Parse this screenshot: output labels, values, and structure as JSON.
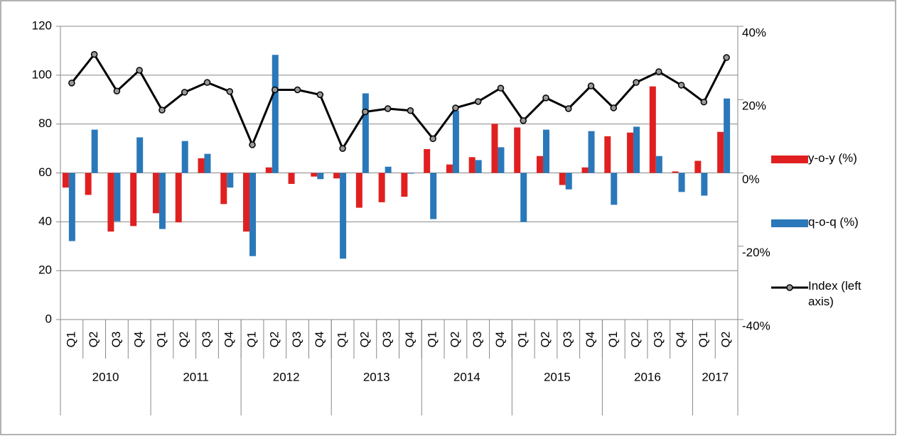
{
  "chart_data": {
    "type": "bar",
    "categories": [
      "Q1",
      "Q2",
      "Q3",
      "Q4",
      "Q1",
      "Q2",
      "Q3",
      "Q4",
      "Q1",
      "Q2",
      "Q3",
      "Q4",
      "Q1",
      "Q2",
      "Q3",
      "Q4",
      "Q1",
      "Q2",
      "Q3",
      "Q4",
      "Q1",
      "Q2",
      "Q3",
      "Q4",
      "Q1",
      "Q2",
      "Q3",
      "Q4",
      "Q1",
      "Q2"
    ],
    "category_groups": [
      {
        "name": "2010",
        "count": 4
      },
      {
        "name": "2011",
        "count": 4
      },
      {
        "name": "2012",
        "count": 4
      },
      {
        "name": "2013",
        "count": 4
      },
      {
        "name": "2014",
        "count": 4
      },
      {
        "name": "2015",
        "count": 4
      },
      {
        "name": "2016",
        "count": 4
      },
      {
        "name": "2017",
        "count": 2
      }
    ],
    "series": [
      {
        "name": "y-o-y (%)",
        "type": "bar",
        "axis": "y2",
        "color": "#e02020",
        "values": [
          -4,
          -6,
          -16,
          -14.5,
          -11,
          -13.5,
          4,
          -8.5,
          -16,
          1.5,
          -3,
          -1,
          -1.5,
          -9.5,
          -8,
          -6.5,
          6.5,
          2.3,
          4.3,
          13.4,
          12.4,
          4.6,
          -3.3,
          1.5,
          10,
          11,
          23.6,
          0.4,
          3.3,
          11.2
        ]
      },
      {
        "name": "q-o-q (%)",
        "type": "bar",
        "axis": "y2",
        "color": "#2a78b9",
        "values": [
          -18.6,
          11.8,
          -13.2,
          9.7,
          -15.3,
          8.7,
          5.2,
          -4,
          -22.7,
          32.2,
          0,
          -1.7,
          -23.4,
          21.7,
          1.7,
          -0.2,
          -12.6,
          17,
          3.5,
          7,
          -13.4,
          11.8,
          -4.5,
          11.4,
          -8.7,
          12.6,
          4.6,
          -5.2,
          -6.2,
          20.3
        ]
      },
      {
        "name": "Index (left axis)",
        "type": "line",
        "axis": "y",
        "color": "#000000",
        "values": [
          96.8,
          108.5,
          93.5,
          102,
          85.7,
          93,
          97,
          93.3,
          71.5,
          94,
          94,
          92,
          70,
          85,
          86.3,
          85.5,
          74,
          86.6,
          89.2,
          94.7,
          81.4,
          90.7,
          86.3,
          95.6,
          86.6,
          97,
          101.4,
          95.9,
          89,
          107.2
        ]
      }
    ],
    "ylim": [
      0,
      120
    ],
    "yticks": [
      0,
      20,
      40,
      60,
      80,
      100,
      120
    ],
    "y2lim": [
      -40,
      40
    ],
    "y2ticks": [
      {
        "value": -40,
        "label": "-40%"
      },
      {
        "value": -20,
        "label": "-20%"
      },
      {
        "value": 0,
        "label": "0%"
      },
      {
        "value": 20,
        "label": "20%"
      },
      {
        "value": 40,
        "label": "40%"
      }
    ],
    "grid": true,
    "legend": "right"
  }
}
